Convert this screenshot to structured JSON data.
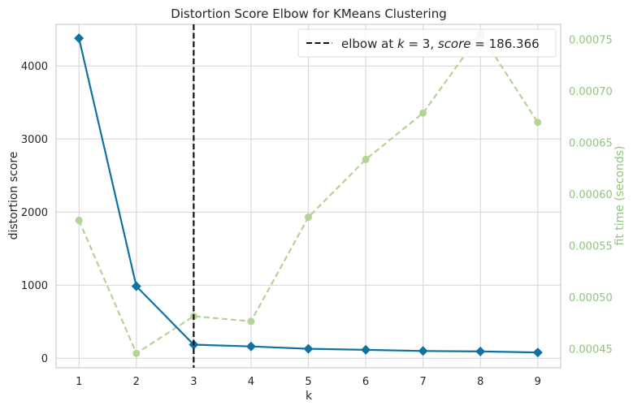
{
  "chart_data": {
    "type": "line",
    "title": "Distortion Score Elbow for KMeans Clustering",
    "xlabel": "k",
    "ylabel": "distortion score",
    "y2label": "fit time (seconds)",
    "x": [
      1,
      2,
      3,
      4,
      5,
      6,
      7,
      8,
      9
    ],
    "xlim": [
      0.6,
      9.4
    ],
    "ylim": [
      -130,
      4570
    ],
    "y2lim": [
      0.000432,
      0.000765
    ],
    "xticks": [
      "1",
      "2",
      "3",
      "4",
      "5",
      "6",
      "7",
      "8",
      "9"
    ],
    "yticks": [
      {
        "value": 0,
        "label": "0"
      },
      {
        "value": 1000,
        "label": "1000"
      },
      {
        "value": 2000,
        "label": "2000"
      },
      {
        "value": 3000,
        "label": "3000"
      },
      {
        "value": 4000,
        "label": "4000"
      }
    ],
    "y2ticks": [
      {
        "value": 0.00045,
        "label": "0.00045"
      },
      {
        "value": 0.0005,
        "label": "0.00050"
      },
      {
        "value": 0.00055,
        "label": "0.00055"
      },
      {
        "value": 0.0006,
        "label": "0.00060"
      },
      {
        "value": 0.00065,
        "label": "0.00065"
      },
      {
        "value": 0.0007,
        "label": "0.00070"
      },
      {
        "value": 0.00075,
        "label": "0.00075"
      }
    ],
    "series": [
      {
        "axis": "left",
        "color": "#0f72a2",
        "marker": "diamond",
        "values": [
          4380,
          985,
          186.366,
          162,
          130,
          115,
          100,
          93,
          80
        ]
      },
      {
        "axis": "right",
        "color": "#b3d494",
        "marker": "circle",
        "dashed": true,
        "values": [
          0.000575,
          0.000446,
          0.000482,
          0.000477,
          0.000578,
          0.000634,
          0.000679,
          0.000756,
          0.00067
        ]
      }
    ],
    "elbow": {
      "x": 3,
      "legend_prefix": "elbow at ",
      "k_symbol": "k",
      "equals": " = ",
      "k_value": "3",
      "separator": ", ",
      "score_symbol": "score",
      "score_value": "186.366"
    },
    "legend_position": "top-right",
    "grid": true
  }
}
